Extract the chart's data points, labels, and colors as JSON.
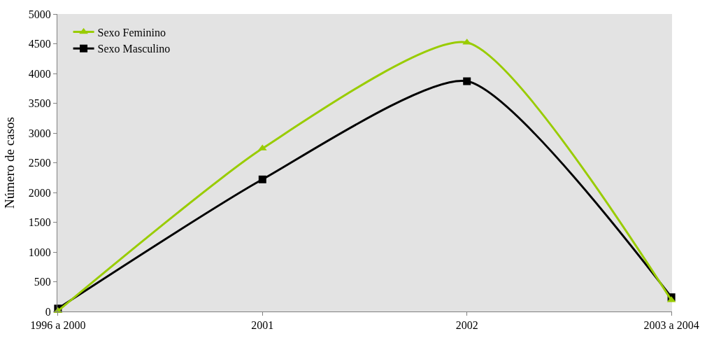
{
  "chart_data": {
    "type": "line",
    "ylabel": "Número de casos",
    "categories": [
      "1996 a 2000",
      "2001",
      "2002",
      "2003 a 2004"
    ],
    "series": [
      {
        "name": "Sexo Feminino",
        "color": "#99cc00",
        "marker": "triangle",
        "values": [
          10,
          2740,
          4520,
          190
        ]
      },
      {
        "name": "Sexo Masculino",
        "color": "#000000",
        "marker": "square",
        "values": [
          50,
          2220,
          3870,
          240
        ]
      }
    ],
    "ylim": [
      0,
      5000
    ],
    "yticks": [
      0,
      500,
      1000,
      1500,
      2000,
      2500,
      3000,
      3500,
      4000,
      4500,
      5000
    ],
    "grid": false,
    "legend": "top left",
    "line_style": "solid"
  }
}
